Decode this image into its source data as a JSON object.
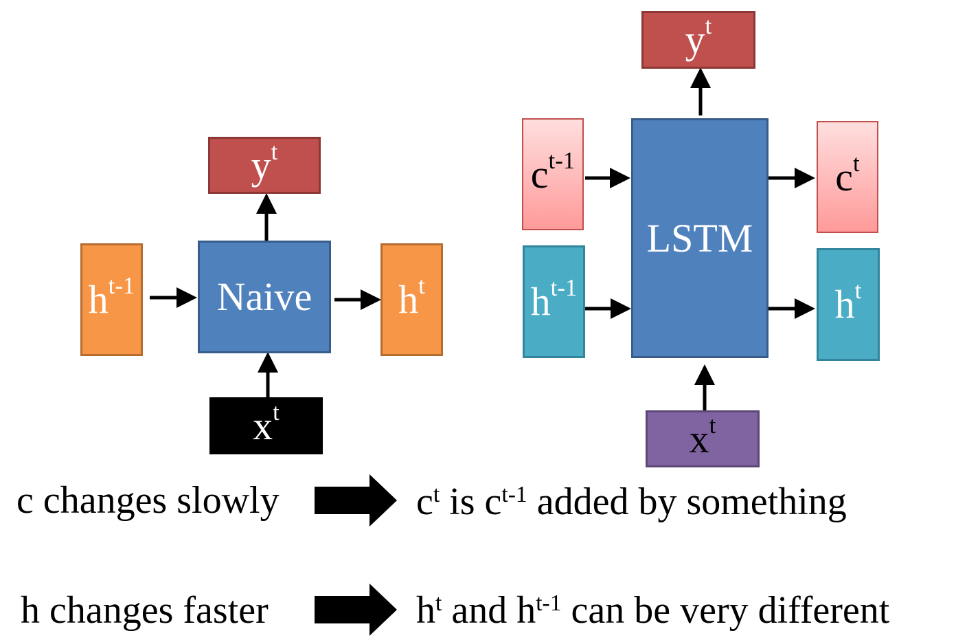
{
  "naive": {
    "output_label": "y",
    "output_sup": "t",
    "prev_hidden_label": "h",
    "prev_hidden_sup": "t-1",
    "block_label": "Naive",
    "next_hidden_label": "h",
    "next_hidden_sup": "t",
    "input_label": "x",
    "input_sup": "t"
  },
  "lstm": {
    "output_label": "y",
    "output_sup": "t",
    "prev_cell_label": "c",
    "prev_cell_sup": "t-1",
    "block_label": "LSTM",
    "next_cell_label": "c",
    "next_cell_sup": "t",
    "prev_hidden_label": "h",
    "prev_hidden_sup": "t-1",
    "next_hidden_label": "h",
    "next_hidden_sup": "t",
    "input_label": "x",
    "input_sup": "t"
  },
  "notes": [
    {
      "left": "c changes slowly",
      "right": [
        {
          "text": "c"
        },
        {
          "sup": "t"
        },
        {
          "text": " is c"
        },
        {
          "sup": "t-1"
        },
        {
          "text": " added by something"
        }
      ]
    },
    {
      "left": "h changes faster",
      "right": [
        {
          "text": "h"
        },
        {
          "sup": "t"
        },
        {
          "text": " and h"
        },
        {
          "sup": "t-1"
        },
        {
          "text": " can be very different"
        }
      ]
    }
  ],
  "colors": {
    "output": "#c0504d",
    "naive_state": "#f79646",
    "block": "#4f81bd",
    "naive_input": "#000000",
    "cell": "#ff9a9a",
    "lstm_hidden": "#4bacc6",
    "lstm_input": "#8064a2"
  }
}
